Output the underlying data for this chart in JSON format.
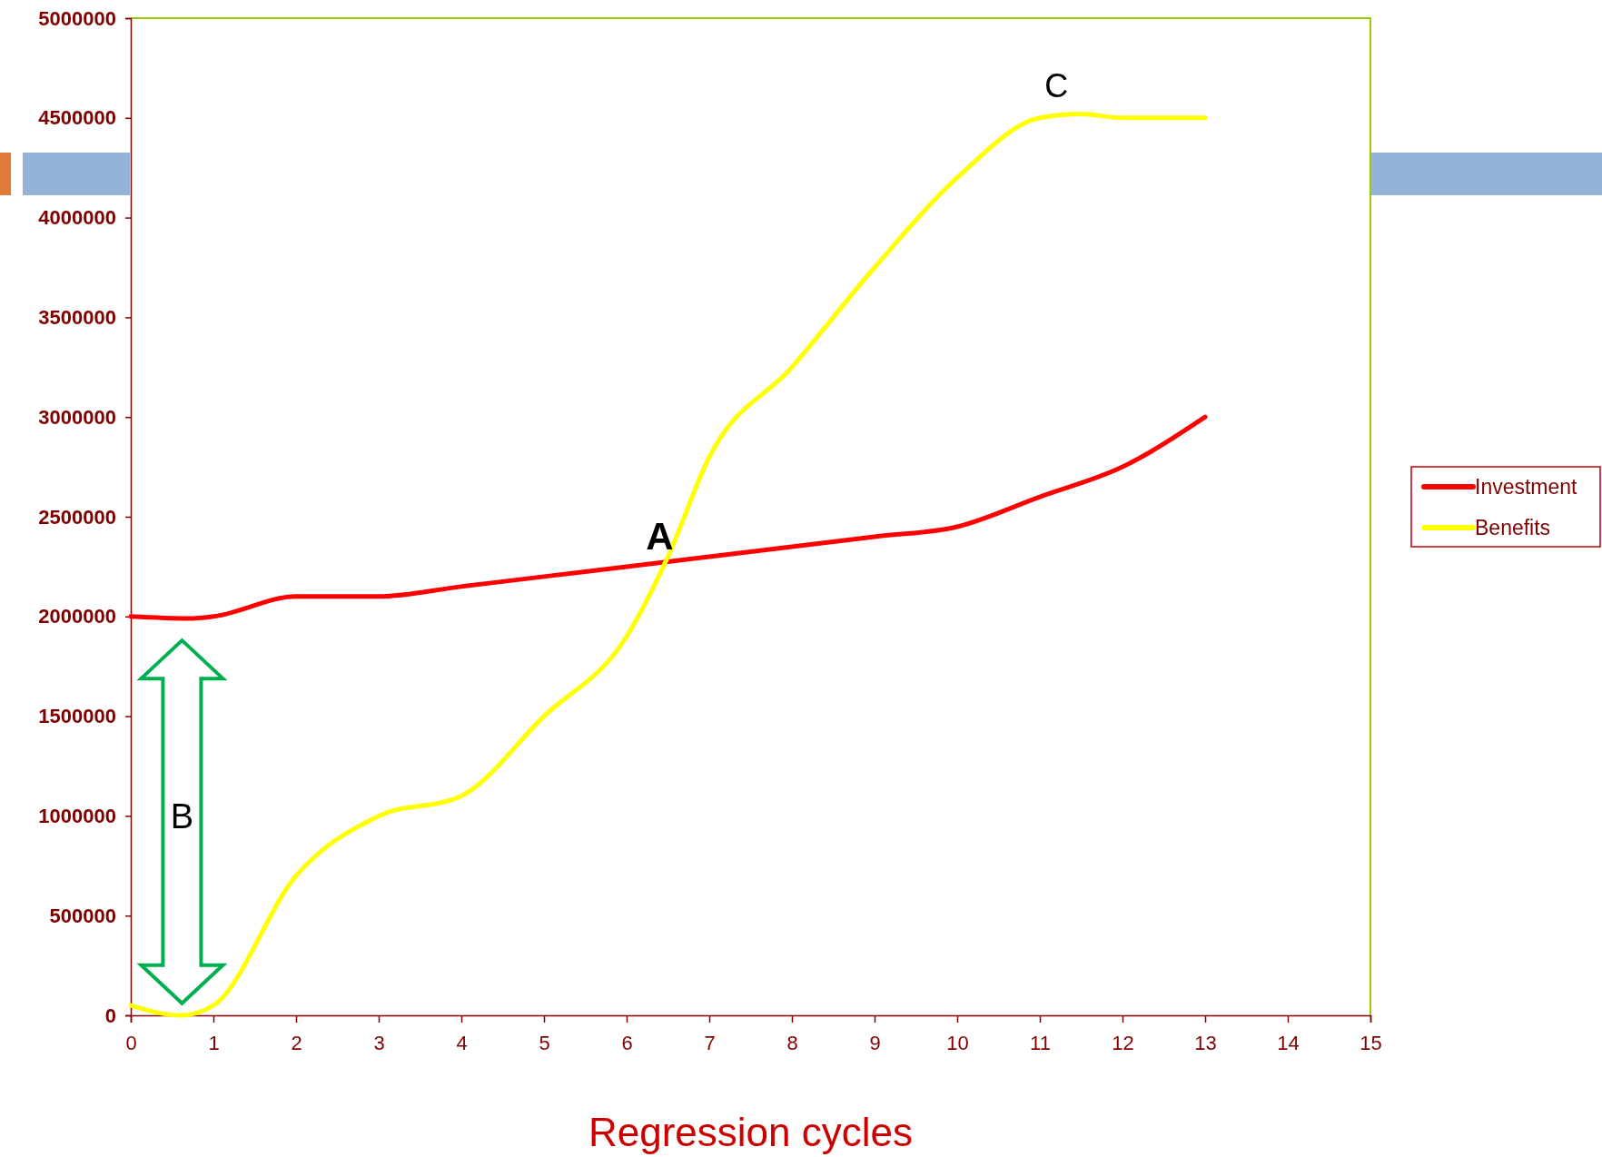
{
  "chart_data": {
    "type": "line",
    "xlabel": "Regression cycles",
    "series": [
      {
        "name": "Investment",
        "color": "#ff0000",
        "x": [
          0,
          0.7,
          1,
          2,
          3,
          4,
          5,
          6,
          7,
          8,
          9,
          10,
          11,
          12,
          13
        ],
        "values": [
          2000000,
          1990000,
          2000000,
          2100000,
          2100000,
          2150000,
          2200000,
          2250000,
          2300000,
          2350000,
          2400000,
          2450000,
          2600000,
          2750000,
          3000000
        ]
      },
      {
        "name": "Benefits",
        "color": "#ffff00",
        "x": [
          0,
          0.6,
          1,
          2,
          3,
          4,
          5,
          6,
          6.5,
          7,
          8,
          9,
          10,
          11,
          11.5,
          12,
          13
        ],
        "values": [
          50000,
          0,
          50000,
          700000,
          1000000,
          1100000,
          1500000,
          1900000,
          2300000,
          2800000,
          3250000,
          3750000,
          4200000,
          4500000,
          4520000,
          4500000,
          4500000
        ]
      }
    ],
    "xlim": [
      0,
      15
    ],
    "xticks": [
      0,
      1,
      2,
      3,
      4,
      5,
      6,
      7,
      8,
      9,
      10,
      11,
      12,
      13,
      14,
      15
    ],
    "ylim": [
      0,
      5000000
    ],
    "yticks": [
      0,
      500000,
      1000000,
      1500000,
      2000000,
      2500000,
      3000000,
      3500000,
      4000000,
      4500000,
      5000000
    ],
    "annotations": [
      {
        "text": "A",
        "x": 6.4,
        "y": 2300000
      },
      "B",
      {
        "text": "C",
        "x": 11.2,
        "y": 4520000
      }
    ],
    "legend": "right",
    "grid": false,
    "marker": "none",
    "line_style": "solid"
  }
}
